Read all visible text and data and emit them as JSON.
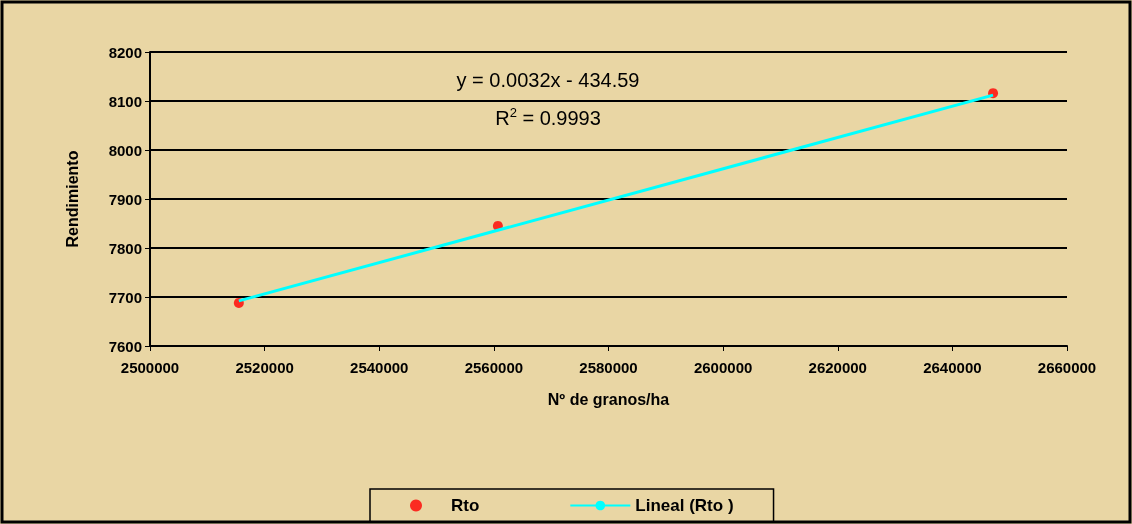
{
  "chart_data": {
    "type": "scatter",
    "xlabel": "Nº de granos/ha",
    "ylabel": "Rendimiento",
    "annotations": [
      "y = 0.0032x - 434.59",
      "R$^{2}$ = 0.9993"
    ],
    "series": [
      {
        "name": "Rto",
        "color": "#ff0000",
        "marker": "circle",
        "x": [
          2515500,
          2560700,
          2647100
        ],
        "values": [
          7688,
          7845,
          8116
        ]
      },
      {
        "name": "Lineal (Rto )",
        "type": "line",
        "color": "#00ffff",
        "marker": "none",
        "x": [
          2515500,
          2647100
        ],
        "values": [
          7692,
          8112
        ]
      }
    ],
    "xlim": [
      2500000,
      2660000
    ],
    "xticks": [
      2500000,
      2520000,
      2540000,
      2560000,
      2580000,
      2600000,
      2620000,
      2640000,
      2660000
    ],
    "ylim": [
      7600,
      8200
    ],
    "yticks": [
      7600,
      7700,
      7800,
      7900,
      8000,
      8100,
      8200
    ],
    "grid": "y",
    "legend": "bottom"
  }
}
